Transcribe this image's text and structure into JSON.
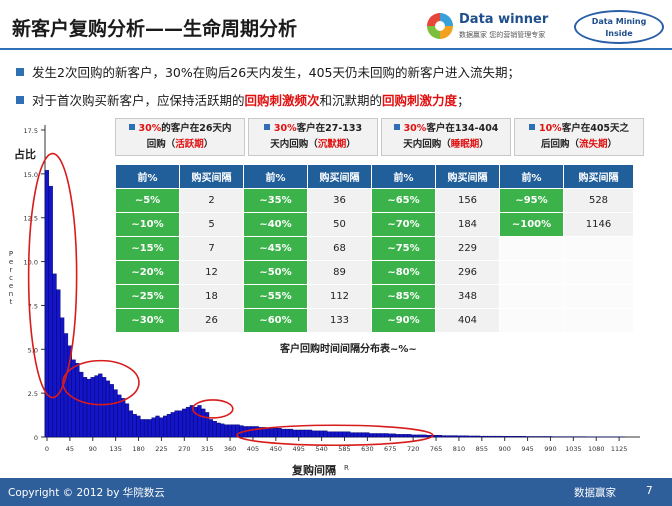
{
  "header": {
    "title": "新客户复购分析——生命周期分析",
    "logo_main": "Data winner",
    "logo_sub": "数据赢家  您的营销管理专家",
    "logo2_line1": "Data Mining",
    "logo2_line2": "Inside"
  },
  "bullets": [
    {
      "text": "发生2次回购的新客户，30%在购后26天内发生，405天仍未回购的新客户进入流失期；"
    },
    {
      "pre": "对于首次购买新客户，应保持活跃期的",
      "hl1": "回购刺激频次",
      "mid": "和沉默期的",
      "hl2": "回购刺激力度",
      "post": "；"
    }
  ],
  "phases": [
    {
      "pct": "30%",
      "l1": "的客户在26天内",
      "l2": "回购（",
      "tag": "活跃期",
      "l3": "）"
    },
    {
      "pct": "30%",
      "l1": "客户在27-133",
      "l2": "天内回购（",
      "tag": "沉默期",
      "l3": "）"
    },
    {
      "pct": "30%",
      "l1": "客户在134-404",
      "l2": "天内回购（",
      "tag": "睡眠期",
      "l3": "）"
    },
    {
      "pct": "10%",
      "l1": "客户在405天之",
      "l2": "后回购（",
      "tag": "流失期",
      "l3": "）"
    }
  ],
  "table": {
    "headers": [
      "前%",
      "购买间隔"
    ],
    "groups": [
      [
        [
          "~5%",
          "2"
        ],
        [
          "~10%",
          "5"
        ],
        [
          "~15%",
          "7"
        ],
        [
          "~20%",
          "12"
        ],
        [
          "~25%",
          "18"
        ],
        [
          "~30%",
          "26"
        ]
      ],
      [
        [
          "~35%",
          "36"
        ],
        [
          "~40%",
          "50"
        ],
        [
          "~45%",
          "68"
        ],
        [
          "~50%",
          "89"
        ],
        [
          "~55%",
          "112"
        ],
        [
          "~60%",
          "133"
        ]
      ],
      [
        [
          "~65%",
          "156"
        ],
        [
          "~70%",
          "184"
        ],
        [
          "~75%",
          "229"
        ],
        [
          "~80%",
          "296"
        ],
        [
          "~85%",
          "348"
        ],
        [
          "~90%",
          "404"
        ]
      ],
      [
        [
          "~95%",
          "528"
        ],
        [
          "~100%",
          "1146"
        ]
      ]
    ],
    "caption": "客户回购时间间隔分布表~%~"
  },
  "chart_data": {
    "type": "bar",
    "ylabel_cn": "占比",
    "ylabel_en": "Percent",
    "xlabel": "复购间隔",
    "xlabel_sub": "R",
    "ylim": [
      0,
      17.5
    ],
    "yticks": [
      "17.5",
      "15.0",
      "12.5",
      "10.0",
      "7.5",
      "5.0",
      "2.5",
      "0"
    ],
    "xticks": [
      "0",
      "45",
      "90",
      "135",
      "180",
      "225",
      "270",
      "315",
      "360",
      "405",
      "450",
      "495",
      "540",
      "585",
      "630",
      "675",
      "720",
      "765",
      "810",
      "855",
      "900",
      "945",
      "990",
      "1035",
      "1080",
      "1125"
    ],
    "bin_width": 7.5,
    "values": [
      15.2,
      14.3,
      9.3,
      8.4,
      6.8,
      5.9,
      5.2,
      4.4,
      4.2,
      3.7,
      3.4,
      3.3,
      3.4,
      3.5,
      3.6,
      3.4,
      3.2,
      3.0,
      2.7,
      2.4,
      2.2,
      1.9,
      1.5,
      1.3,
      1.2,
      1.0,
      1.0,
      1.0,
      1.1,
      1.2,
      1.1,
      1.2,
      1.3,
      1.4,
      1.5,
      1.5,
      1.6,
      1.7,
      1.8,
      1.7,
      1.8,
      1.6,
      1.4,
      1.0,
      0.9,
      0.8,
      0.75,
      0.7,
      0.7,
      0.7,
      0.7,
      0.65,
      0.6,
      0.6,
      0.6,
      0.6,
      0.55,
      0.55,
      0.5,
      0.5,
      0.5,
      0.5,
      0.45,
      0.45,
      0.45,
      0.4,
      0.4,
      0.4,
      0.4,
      0.4,
      0.35,
      0.35,
      0.35,
      0.35,
      0.3,
      0.3,
      0.3,
      0.3,
      0.3,
      0.3,
      0.25,
      0.25,
      0.25,
      0.25,
      0.25,
      0.2,
      0.2,
      0.2,
      0.2,
      0.2,
      0.18,
      0.18,
      0.15,
      0.15,
      0.15,
      0.15,
      0.12,
      0.12,
      0.12,
      0.12,
      0.1,
      0.1,
      0.1,
      0.1,
      0.08,
      0.08,
      0.08,
      0.08,
      0.07,
      0.07,
      0.07,
      0.06,
      0.06,
      0.06,
      0.05,
      0.05,
      0.05,
      0.05,
      0.05,
      0.05,
      0.04,
      0.04,
      0.04,
      0.04,
      0.04,
      0.04,
      0.03,
      0.03,
      0.03,
      0.03,
      0.03,
      0.03,
      0.03,
      0.02,
      0.02,
      0.02,
      0.02,
      0.02,
      0.02,
      0.02,
      0.02,
      0.02,
      0.01,
      0.01,
      0.01,
      0.01,
      0.01,
      0.01,
      0.01,
      0.01,
      0.01,
      0.01
    ],
    "colors": {
      "bar": "#1414c8",
      "bar_edge": "#000060",
      "ellipse": "#d81b1b"
    },
    "grid": false
  },
  "footer": {
    "copyright": "Copyright © 2012 by 华院数云",
    "brand": "数据赢家",
    "page": "7"
  }
}
